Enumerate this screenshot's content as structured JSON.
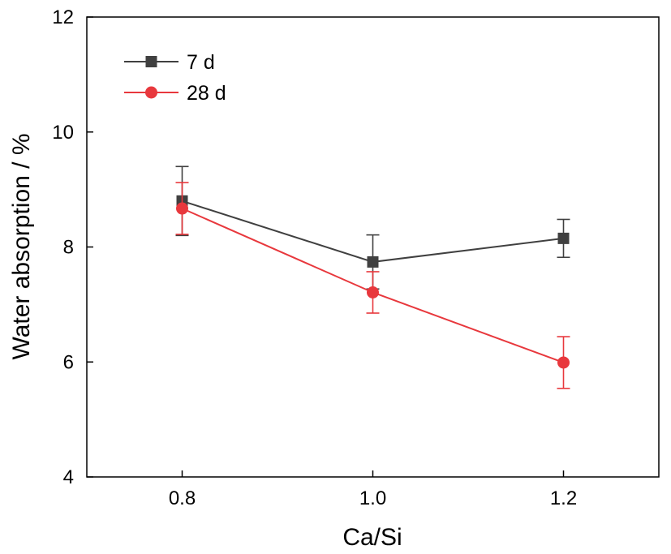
{
  "chart_data": {
    "type": "line",
    "xlabel": "Ca/Si",
    "ylabel": "Water absorption / %",
    "xlim": [
      0.7,
      1.3
    ],
    "ylim": [
      4,
      12
    ],
    "x_ticks": [
      0.8,
      1.0,
      1.2
    ],
    "x_tick_labels": [
      "0.8",
      "1.0",
      "1.2"
    ],
    "y_ticks": [
      4,
      6,
      8,
      10,
      12
    ],
    "y_tick_labels": [
      "4",
      "6",
      "8",
      "10",
      "12"
    ],
    "grid": false,
    "legend_position": "top-left",
    "series": [
      {
        "name": "7 d",
        "color": "#404040",
        "marker": "square",
        "x": [
          0.8,
          1.0,
          1.2
        ],
        "y": [
          8.8,
          7.74,
          8.15
        ],
        "err": [
          0.6,
          0.47,
          0.33
        ]
      },
      {
        "name": "28 d",
        "color": "#e8383d",
        "marker": "circle",
        "x": [
          0.8,
          1.0,
          1.2
        ],
        "y": [
          8.67,
          7.21,
          5.99
        ],
        "err": [
          0.45,
          0.36,
          0.45
        ]
      }
    ]
  }
}
